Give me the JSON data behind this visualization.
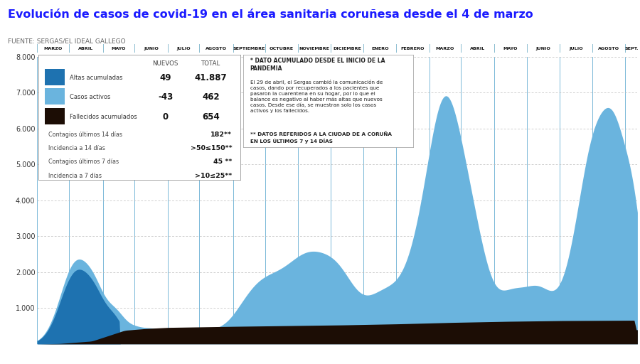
{
  "title": "Evolución de casos de covid-19 en el área sanitaria coruñesa desde el 4 de marzo",
  "subtitle": "FUENTE: SERGAS/EL IDEAL GALLEGO",
  "title_color": "#1a1aff",
  "subtitle_color": "#666666",
  "bg_color": "#ffffff",
  "area_color_active": "#6ab4de",
  "area_color_altas": "#1e72b0",
  "area_color_fallecidos": "#1c0d05",
  "grid_color_v": "#7ab8d8",
  "grid_color_h": "#bbbbbb",
  "ylim": [
    0,
    8000
  ],
  "yticks": [
    1000,
    2000,
    3000,
    4000,
    5000,
    6000,
    7000,
    8000
  ],
  "month_labels": [
    "MARZO",
    "ABRIL",
    "MAYO",
    "JUNIO",
    "JULIO",
    "AGOSTO",
    "SEPTIEMBRE",
    "OCTUBRE",
    "NOVIEMBRE",
    "DICIEMBRE",
    "ENERO",
    "FEBRERO",
    "MARZO",
    "ABRIL",
    "MAYO",
    "JUNIO",
    "JULIO",
    "AGOSTO",
    "SEPT."
  ],
  "legend_nuevos": [
    "49",
    "-43",
    "0"
  ],
  "legend_totales": [
    "41.887",
    "462",
    "654"
  ],
  "legend_labels": [
    "Altas acumuladas",
    "Casos activos",
    "Fallecidos acumulados"
  ],
  "legend_colors": [
    "#1e72b0",
    "#6ab4de",
    "#1c0d05"
  ],
  "extra_rows": [
    [
      "Contagios últimos 14 días",
      "182**"
    ],
    [
      "Incidencia a 14 días",
      ">50≤150**"
    ],
    [
      "Contagios últimos 7 días",
      "45 **"
    ],
    [
      "Incidencia a 7 días",
      ">10≤25**"
    ]
  ],
  "annot_line1": "* DATO ACUMULADO DESDE EL INICIO DE LA\nPANDEMIA",
  "annot_body": "El 29 de abril, el Sergas cambió la comunicación de\ncasos, dando por recuperados a los pacientes que\npasaron la cuarentena en su hogar, por lo que el\nbalance es negativo al haber más altas que nuevos\ncasos. Desde ese día, se muestran solo los casos\nactivos y los fallecidos.",
  "annot_footer": "** DATOS REFERIDOS A LA CIUDAD DE A CORUÑA\nEN LOS ÚLTIMOS 7 y 14 DÍAS"
}
